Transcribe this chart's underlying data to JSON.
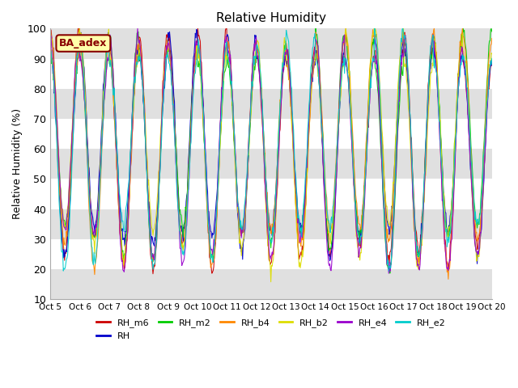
{
  "title": "Relative Humidity",
  "ylabel": "Relative Humidity (%)",
  "ylim": [
    10,
    100
  ],
  "yticks": [
    10,
    20,
    30,
    40,
    50,
    60,
    70,
    80,
    90,
    100
  ],
  "xtick_positions": [
    0,
    1,
    2,
    3,
    4,
    5,
    6,
    7,
    8,
    9,
    10,
    11,
    12,
    13,
    14,
    15
  ],
  "xtick_labels": [
    "Oct 5",
    "Oct 6",
    "Oct 7",
    "Oct 8",
    "Oct 9",
    "Oct 10",
    "Oct 11",
    "Oct 12",
    "Oct 13",
    "Oct 14",
    "Oct 15",
    "Oct 16",
    "Oct 17",
    "Oct 18",
    "Oct 19",
    "Oct 20"
  ],
  "series": [
    {
      "name": "RH_m6",
      "color": "#cc0000"
    },
    {
      "name": "RH",
      "color": "#0000cc"
    },
    {
      "name": "RH_m2",
      "color": "#00cc00"
    },
    {
      "name": "RH_b4",
      "color": "#ff8800"
    },
    {
      "name": "RH_b2",
      "color": "#dddd00"
    },
    {
      "name": "RH_e4",
      "color": "#9900cc"
    },
    {
      "name": "RH_e2",
      "color": "#00cccc"
    }
  ],
  "annotation_text": "BA_adex",
  "annotation_color": "#880000",
  "annotation_bg": "#ffffaa",
  "bg_band_color": "#e0e0e0",
  "bg_white": "#ffffff",
  "n_days": 15,
  "points_per_day": 48,
  "noise_scale": 1.2,
  "legend_ncol": 6
}
